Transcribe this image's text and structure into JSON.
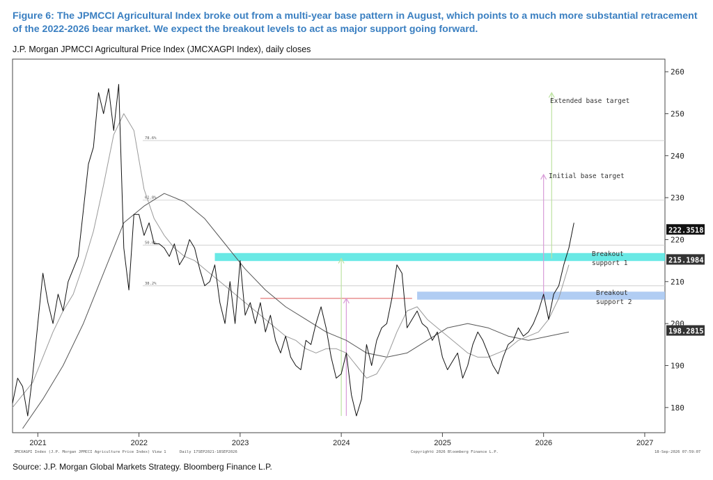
{
  "title": "Figure 6: The JPMCCI Agricultural Index broke out from a multi-year base pattern in August, which points to a much more substantial retracement of the 2022-2026 bear market. We expect the breakout levels to act as major support going forward.",
  "subtitle": "J.P. Morgan JPMCCI Agricultural Price Index (JMCXAGPI Index), daily closes",
  "source": "Source: J.P. Morgan Global Markets Strategy. Bloomberg Finance L.P.",
  "chart_data": {
    "type": "line",
    "x_ticks": [
      "2021",
      "2022",
      "2023",
      "2024",
      "2025",
      "2026",
      "2027"
    ],
    "y_ticks": [
      180,
      190,
      200,
      210,
      220,
      230,
      240,
      250,
      260
    ],
    "ylim": [
      174,
      263
    ],
    "grid": false,
    "price_series": {
      "x": [
        2020.75,
        2020.8,
        2020.85,
        2020.9,
        2020.95,
        2021.0,
        2021.05,
        2021.1,
        2021.15,
        2021.2,
        2021.25,
        2021.3,
        2021.35,
        2021.4,
        2021.45,
        2021.5,
        2021.55,
        2021.6,
        2021.65,
        2021.7,
        2021.75,
        2021.8,
        2021.85,
        2021.9,
        2021.95,
        2022.0,
        2022.05,
        2022.1,
        2022.15,
        2022.2,
        2022.25,
        2022.3,
        2022.35,
        2022.4,
        2022.45,
        2022.5,
        2022.55,
        2022.6,
        2022.65,
        2022.7,
        2022.75,
        2022.8,
        2022.85,
        2022.9,
        2022.95,
        2023.0,
        2023.05,
        2023.1,
        2023.15,
        2023.2,
        2023.25,
        2023.3,
        2023.35,
        2023.4,
        2023.45,
        2023.5,
        2023.55,
        2023.6,
        2023.65,
        2023.7,
        2023.75,
        2023.8,
        2023.85,
        2023.9,
        2023.95,
        2024.0,
        2024.05,
        2024.1,
        2024.15,
        2024.2,
        2024.25,
        2024.3,
        2024.35,
        2024.4,
        2024.45,
        2024.5,
        2024.55,
        2024.6,
        2024.65,
        2024.7,
        2024.75,
        2024.8,
        2024.85,
        2024.9,
        2024.95,
        2025.0,
        2025.05,
        2025.1,
        2025.15,
        2025.2,
        2025.25,
        2025.3,
        2025.35,
        2025.4,
        2025.45,
        2025.5,
        2025.55,
        2025.6,
        2025.65,
        2025.7,
        2025.75,
        2025.8,
        2025.85,
        2025.9,
        2025.95,
        2026.0,
        2026.05,
        2026.1,
        2026.15,
        2026.2,
        2026.25,
        2026.3
      ],
      "y": [
        181,
        187,
        185,
        178,
        188,
        200,
        212,
        205,
        200,
        207,
        203,
        210,
        213,
        216,
        227,
        238,
        242,
        255,
        250,
        256,
        246,
        257,
        218,
        208,
        226,
        226,
        221,
        224,
        219,
        219,
        218,
        216,
        219,
        214,
        216,
        220,
        218,
        213,
        209,
        210,
        214,
        205,
        200,
        210,
        200,
        215,
        202,
        205,
        200,
        205,
        198,
        202,
        196,
        193,
        197,
        192,
        190,
        189,
        196,
        195,
        200,
        204,
        199,
        192,
        187,
        188,
        193,
        183,
        178,
        182,
        195,
        190,
        196,
        199,
        200,
        206,
        214,
        212,
        199,
        201,
        203,
        200,
        199,
        196,
        198,
        192,
        189,
        191,
        193,
        187,
        190,
        195,
        198,
        196,
        193,
        190,
        188,
        192,
        195,
        196,
        199,
        197,
        198,
        200,
        203,
        207,
        201,
        207,
        209,
        214,
        218,
        224
      ],
      "last_value": "222.3518"
    },
    "sma_short": {
      "x": [
        2020.75,
        2020.85,
        2020.95,
        2021.05,
        2021.15,
        2021.25,
        2021.35,
        2021.45,
        2021.55,
        2021.65,
        2021.75,
        2021.85,
        2021.95,
        2022.05,
        2022.15,
        2022.25,
        2022.35,
        2022.45,
        2022.55,
        2022.65,
        2022.75,
        2022.85,
        2022.95,
        2023.05,
        2023.15,
        2023.25,
        2023.35,
        2023.45,
        2023.55,
        2023.65,
        2023.75,
        2023.85,
        2023.95,
        2024.05,
        2024.15,
        2024.25,
        2024.35,
        2024.45,
        2024.55,
        2024.65,
        2024.75,
        2024.85,
        2024.95,
        2025.05,
        2025.15,
        2025.25,
        2025.35,
        2025.45,
        2025.55,
        2025.65,
        2025.75,
        2025.85,
        2025.95,
        2026.05,
        2026.15,
        2026.25
      ],
      "y": [
        180,
        183,
        186,
        192,
        198,
        203,
        207,
        214,
        222,
        233,
        245,
        250,
        246,
        232,
        225,
        221,
        218,
        216,
        215,
        213,
        211,
        209,
        207,
        205,
        203,
        201,
        199,
        197,
        196,
        194,
        193,
        194,
        194,
        193,
        190,
        187,
        188,
        192,
        198,
        203,
        204,
        201,
        199,
        197,
        195,
        193,
        192,
        192,
        193,
        194,
        196,
        197,
        198,
        201,
        206,
        214
      ]
    },
    "sma_long": {
      "x": [
        2020.85,
        2021.05,
        2021.25,
        2021.45,
        2021.65,
        2021.85,
        2022.05,
        2022.25,
        2022.45,
        2022.65,
        2022.85,
        2023.05,
        2023.25,
        2023.45,
        2023.65,
        2023.85,
        2024.05,
        2024.25,
        2024.45,
        2024.65,
        2024.85,
        2025.05,
        2025.25,
        2025.45,
        2025.65,
        2025.85,
        2026.05,
        2026.25
      ],
      "y": [
        175,
        182,
        190,
        200,
        212,
        224,
        228,
        231,
        229,
        225,
        219,
        213,
        208,
        204,
        201,
        198,
        196,
        193,
        192,
        193,
        196,
        199,
        200,
        199,
        197,
        196,
        197,
        198
      ]
    },
    "fib_levels": [
      {
        "value": 229.4,
        "label": "61.8%"
      },
      {
        "value": 218.7,
        "label": "50.0%"
      },
      {
        "value": 209.0,
        "label": "38.2%"
      },
      {
        "value": 243.6,
        "label": "78.6%"
      }
    ],
    "breakout_support_1": {
      "y_low": 214.9,
      "y_high": 216.8,
      "x_start": 2022.75,
      "label": "Breakout support 1",
      "value_label": "215.1984"
    },
    "breakout_support_2": {
      "y_low": 205.7,
      "y_high": 207.6,
      "x_start": 2024.75,
      "label": "Breakout support 2"
    },
    "neckline": {
      "y": 206.0,
      "x_start": 2023.2,
      "x_end": 2024.7
    },
    "sma_last_label": "198.2815",
    "annotations": {
      "extended_target": "Extended base target",
      "initial_target": "Initial base target"
    },
    "footer_left": "JMCXAGPI Index (J.P. Morgan JPMCCI Agriculture Price Index) View 1",
    "footer_mid": "Daily 17SEP2021-18SEP2026",
    "footer_copyright": "Copyright© 2026 Bloomberg Finance L.P.",
    "footer_right": "18-Sep-2026 07:59:07",
    "colors": {
      "title": "#3a7fc1",
      "support1": "#4fe5e0",
      "support2": "#a9c8f2",
      "neckline": "#e06a6a",
      "price": "#111111",
      "sma": "#999999",
      "target_pink": "#d89bd8",
      "target_green": "#bde2a2"
    }
  }
}
